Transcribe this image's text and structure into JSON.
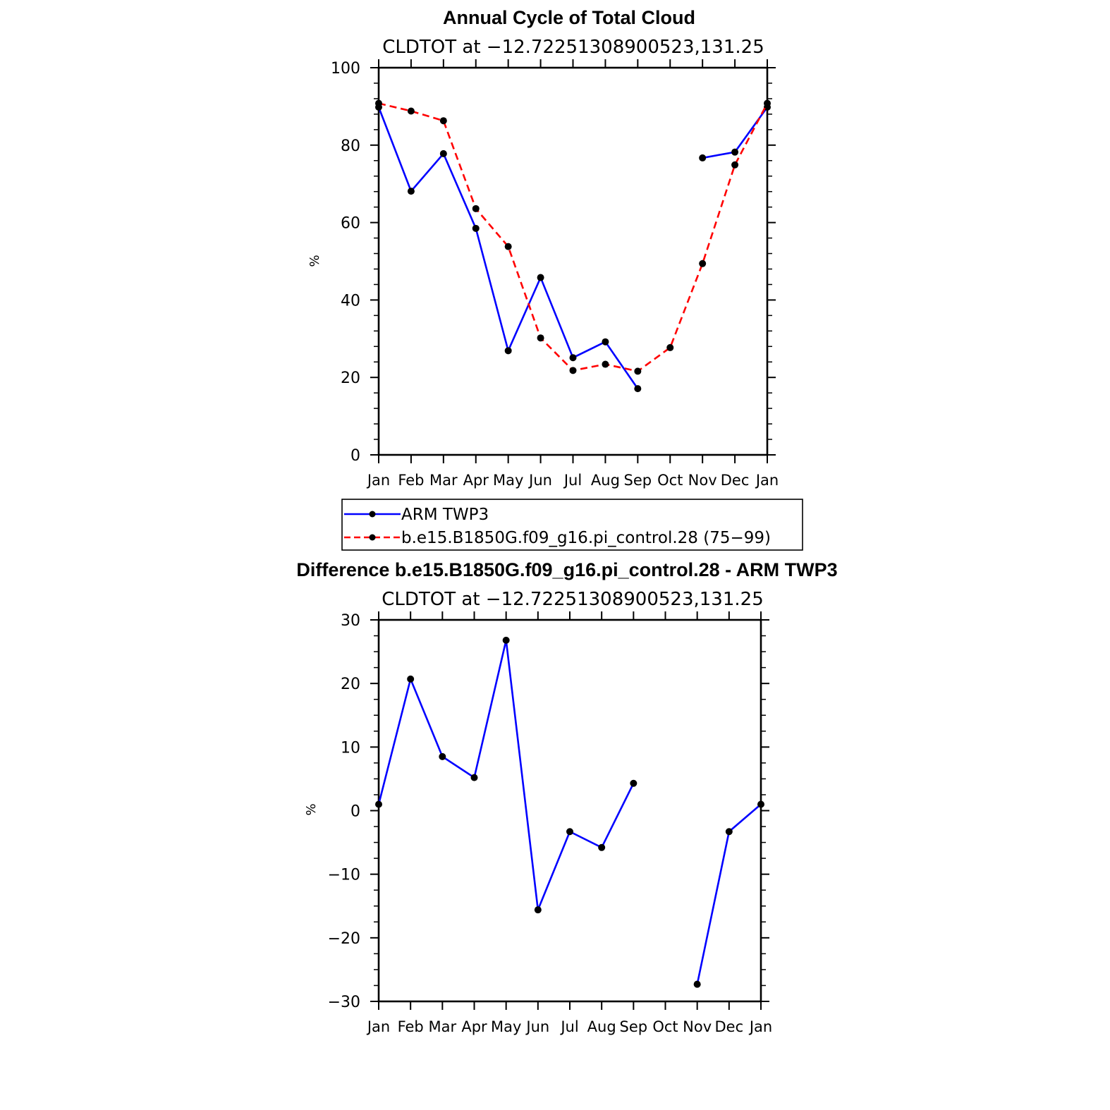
{
  "chart_data": [
    {
      "type": "line",
      "title": "Annual Cycle of Total Cloud",
      "subtitle": "CLDTOT at −12.72251308900523,131.25",
      "ylabel": "%",
      "xlabel": "",
      "categories": [
        "Jan",
        "Feb",
        "Mar",
        "Apr",
        "May",
        "Jun",
        "Jul",
        "Aug",
        "Sep",
        "Oct",
        "Nov",
        "Dec",
        "Jan"
      ],
      "ylim": [
        0,
        100
      ],
      "yticks": [
        0,
        20,
        40,
        60,
        80,
        100
      ],
      "ytick_labels": [
        "0",
        "20",
        "40",
        "60",
        "80",
        "100"
      ],
      "grid": false,
      "legend_placement": "bottom",
      "series": [
        {
          "name": "ARM TWP3",
          "color": "#0000ff",
          "dash": "solid",
          "values": [
            89.8,
            68.1,
            77.8,
            58.5,
            26.9,
            45.8,
            25.1,
            29.2,
            17.1,
            null,
            76.7,
            78.2,
            89.8
          ]
        },
        {
          "name": "b.e15.B1850G.f09_g16.pi_control.28 (75−99)",
          "color": "#ff0000",
          "dash": "dashed",
          "values": [
            90.8,
            88.8,
            86.3,
            63.6,
            53.8,
            30.2,
            21.8,
            23.4,
            21.6,
            27.7,
            49.4,
            74.9,
            90.8
          ]
        }
      ]
    },
    {
      "type": "line",
      "title": "Difference b.e15.B1850G.f09_g16.pi_control.28 - ARM TWP3",
      "subtitle": "CLDTOT at −12.72251308900523,131.25",
      "ylabel": "%",
      "xlabel": "",
      "categories": [
        "Jan",
        "Feb",
        "Mar",
        "Apr",
        "May",
        "Jun",
        "Jul",
        "Aug",
        "Sep",
        "Oct",
        "Nov",
        "Dec",
        "Jan"
      ],
      "ylim": [
        -30,
        30
      ],
      "yticks": [
        -30,
        -20,
        -10,
        0,
        10,
        20,
        30
      ],
      "ytick_labels": [
        "−30",
        "−20",
        "−10",
        "0",
        "10",
        "20",
        "30"
      ],
      "grid": false,
      "series": [
        {
          "color": "#0000ff",
          "dash": "solid",
          "values": [
            1.0,
            20.7,
            8.5,
            5.2,
            26.8,
            -15.6,
            -3.3,
            -5.8,
            4.3,
            null,
            -27.3,
            -3.3,
            1.0
          ]
        }
      ]
    }
  ]
}
